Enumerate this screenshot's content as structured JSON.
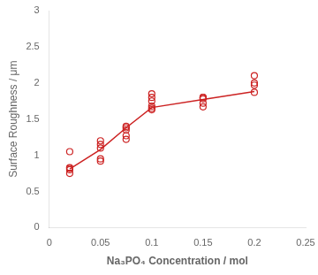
{
  "chart_data": {
    "type": "scatter",
    "xlabel": "Na₃PO₄ Concentration / mol",
    "ylabel": "Surface Roughness / μm",
    "series": [
      {
        "type": "scatter",
        "color": "#cc2222",
        "marker": "circle",
        "x": [
          0.02,
          0.02,
          0.02,
          0.02,
          0.02,
          0.05,
          0.05,
          0.05,
          0.05,
          0.05,
          0.075,
          0.075,
          0.075,
          0.075,
          0.075,
          0.1,
          0.1,
          0.1,
          0.1,
          0.1,
          0.1,
          0.15,
          0.15,
          0.15,
          0.15,
          0.15,
          0.2,
          0.2,
          0.2,
          0.2
        ],
        "values": [
          0.75,
          0.8,
          0.82,
          0.83,
          1.05,
          0.92,
          0.95,
          1.1,
          1.15,
          1.2,
          1.35,
          1.38,
          1.4,
          1.22,
          1.27,
          1.63,
          1.65,
          1.68,
          1.75,
          1.8,
          1.85,
          1.67,
          1.72,
          1.78,
          1.8,
          1.8,
          1.87,
          1.97,
          2.0,
          2.1
        ]
      },
      {
        "type": "line",
        "color": "#cc2222",
        "line_style": "solid",
        "x": [
          0.02,
          0.05,
          0.075,
          0.1,
          0.15,
          0.2
        ],
        "values": [
          0.81,
          1.08,
          1.38,
          1.66,
          1.77,
          1.88
        ]
      }
    ],
    "xlim": [
      0,
      0.25
    ],
    "ylim": [
      0,
      3
    ],
    "xticks": [
      0,
      0.05,
      0.1,
      0.15,
      0.2,
      0.25
    ],
    "yticks": [
      0,
      0.5,
      1,
      1.5,
      2,
      2.5,
      3
    ],
    "grid": false
  }
}
